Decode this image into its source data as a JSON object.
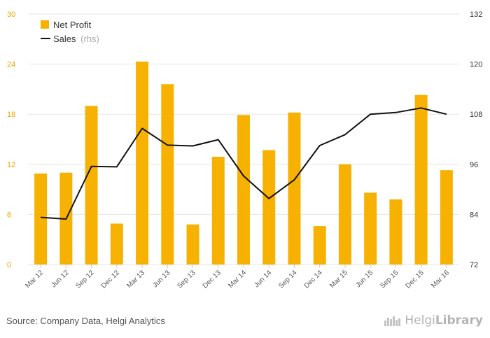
{
  "chart_data": {
    "type": "bar",
    "categories": [
      "Mar 12",
      "Jun 12",
      "Sep 12",
      "Dec 12",
      "Mar 13",
      "Jun 13",
      "Sep 13",
      "Dec 13",
      "Mar 14",
      "Jun 14",
      "Sep 14",
      "Dec 14",
      "Mar 15",
      "Jun 15",
      "Sep 15",
      "Dec 15",
      "Mar 16"
    ],
    "series": [
      {
        "name": "Net Profit",
        "type": "bar",
        "axis": "left",
        "values": [
          10.9,
          11.0,
          19.0,
          4.9,
          24.3,
          21.6,
          4.8,
          12.9,
          17.9,
          13.7,
          18.2,
          4.6,
          12.0,
          8.6,
          7.8,
          20.3,
          11.3
        ]
      },
      {
        "name": "Sales",
        "type": "line",
        "axis": "right",
        "values": [
          83.3,
          82.9,
          95.5,
          95.4,
          104.6,
          100.6,
          100.4,
          101.9,
          93.2,
          87.8,
          92.3,
          100.5,
          103.1,
          108.0,
          108.4,
          109.5,
          108.0
        ]
      }
    ],
    "legend": {
      "bar_label": "Net Profit",
      "line_label": "Sales",
      "line_suffix": "(rhs)",
      "position": "top-left"
    },
    "y_left": {
      "min": 0,
      "max": 30,
      "ticks": [
        0,
        6,
        12,
        18,
        24,
        30
      ]
    },
    "y_right": {
      "min": 72,
      "max": 132,
      "ticks": [
        72,
        84,
        96,
        108,
        120,
        132
      ]
    },
    "grid": "horizontal",
    "colors": {
      "bar": "#f7b100",
      "line": "#111111",
      "left_axis_text": "#e8a600",
      "right_axis_text": "#333333",
      "grid": "#e6e6e6"
    }
  },
  "footer": {
    "source": "Source: Company Data, Helgi Analytics",
    "brand_light": "Helgi",
    "brand_strong": "Library",
    "brand_icon": "helgi-library-logo-icon"
  }
}
